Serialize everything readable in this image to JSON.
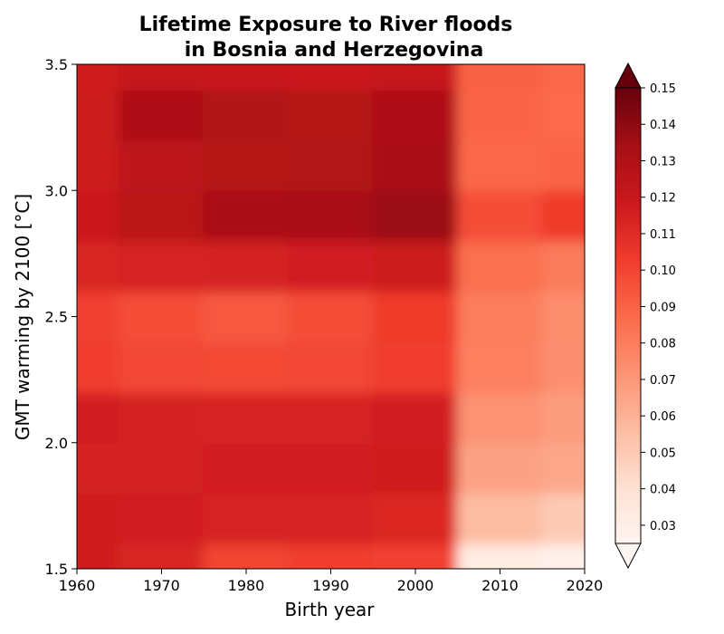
{
  "chart_data": {
    "type": "heatmap",
    "title_line1": "Lifetime Exposure to River floods",
    "title_line2": "in Bosnia and Herzegovina",
    "xlabel": "Birth year",
    "ylabel": "GMT warming by 2100 [°C]",
    "xlim": [
      1960,
      2020
    ],
    "ylim": [
      1.5,
      3.5
    ],
    "x_ticks": [
      "1960",
      "1970",
      "1980",
      "1990",
      "2000",
      "2010",
      "2020"
    ],
    "y_ticks": [
      "1.5",
      "2.0",
      "2.5",
      "3.0",
      "3.5"
    ],
    "colorbar": {
      "colormap": "Reds",
      "vmin": 0.025,
      "vmax": 0.15,
      "extend": "both",
      "tick_labels": [
        "0.03",
        "0.04",
        "0.05",
        "0.06",
        "0.07",
        "0.08",
        "0.09",
        "0.10",
        "0.11",
        "0.12",
        "0.13",
        "0.14",
        "0.15"
      ],
      "colors": [
        "#fff5f0",
        "#fee0d2",
        "#fcbba1",
        "#fc9272",
        "#fb6a4a",
        "#ef3b2c",
        "#cb181d",
        "#a50f15",
        "#67000d"
      ]
    },
    "x": [
      1960,
      1970,
      1980,
      1990,
      2000,
      2010,
      2020
    ],
    "y": [
      1.5,
      1.7,
      1.9,
      2.1,
      2.3,
      2.5,
      2.7,
      2.9,
      3.1,
      3.3,
      3.5
    ],
    "values": [
      [
        0.117,
        0.113,
        0.1,
        0.102,
        0.101,
        0.032,
        0.028
      ],
      [
        0.117,
        0.116,
        0.114,
        0.114,
        0.112,
        0.056,
        0.05
      ],
      [
        0.115,
        0.115,
        0.116,
        0.116,
        0.117,
        0.066,
        0.064
      ],
      [
        0.116,
        0.115,
        0.114,
        0.114,
        0.116,
        0.072,
        0.068
      ],
      [
        0.102,
        0.099,
        0.098,
        0.099,
        0.102,
        0.079,
        0.073
      ],
      [
        0.101,
        0.097,
        0.093,
        0.097,
        0.103,
        0.08,
        0.074
      ],
      [
        0.113,
        0.114,
        0.115,
        0.116,
        0.118,
        0.085,
        0.081
      ],
      [
        0.119,
        0.126,
        0.132,
        0.133,
        0.137,
        0.097,
        0.103
      ],
      [
        0.118,
        0.125,
        0.128,
        0.129,
        0.132,
        0.088,
        0.089
      ],
      [
        0.118,
        0.131,
        0.13,
        0.128,
        0.131,
        0.089,
        0.087
      ],
      [
        0.117,
        0.121,
        0.12,
        0.119,
        0.121,
        0.09,
        0.088
      ]
    ]
  }
}
